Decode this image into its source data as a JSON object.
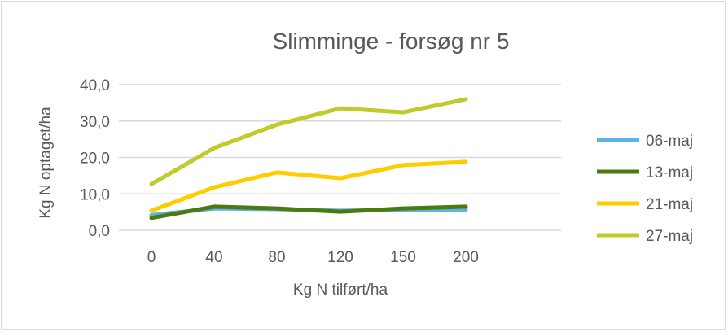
{
  "chart_data": {
    "type": "line",
    "title": "Slimminge - forsøg nr 5",
    "xlabel": "Kg N tilført/ha",
    "ylabel": "Kg N optaget/ha",
    "categories": [
      "0",
      "40",
      "80",
      "120",
      "150",
      "200"
    ],
    "ylim": [
      0,
      40
    ],
    "yticks": [
      "0,0",
      "10,0",
      "20,0",
      "30,0",
      "40,0"
    ],
    "grid": true,
    "legend_position": "right",
    "series": [
      {
        "name": "06-maj",
        "color": "#5BB3E6",
        "values": [
          4.2,
          6.0,
          5.8,
          5.4,
          5.6,
          5.6
        ]
      },
      {
        "name": "13-maj",
        "color": "#4B7A0E",
        "values": [
          3.4,
          6.5,
          6.0,
          5.1,
          6.0,
          6.5
        ]
      },
      {
        "name": "21-maj",
        "color": "#FFCC00",
        "values": [
          5.4,
          11.8,
          15.9,
          14.3,
          17.9,
          18.8
        ]
      },
      {
        "name": "27-maj",
        "color": "#BFCB2A",
        "values": [
          12.7,
          22.6,
          29.0,
          33.5,
          32.4,
          36.0
        ]
      }
    ]
  }
}
